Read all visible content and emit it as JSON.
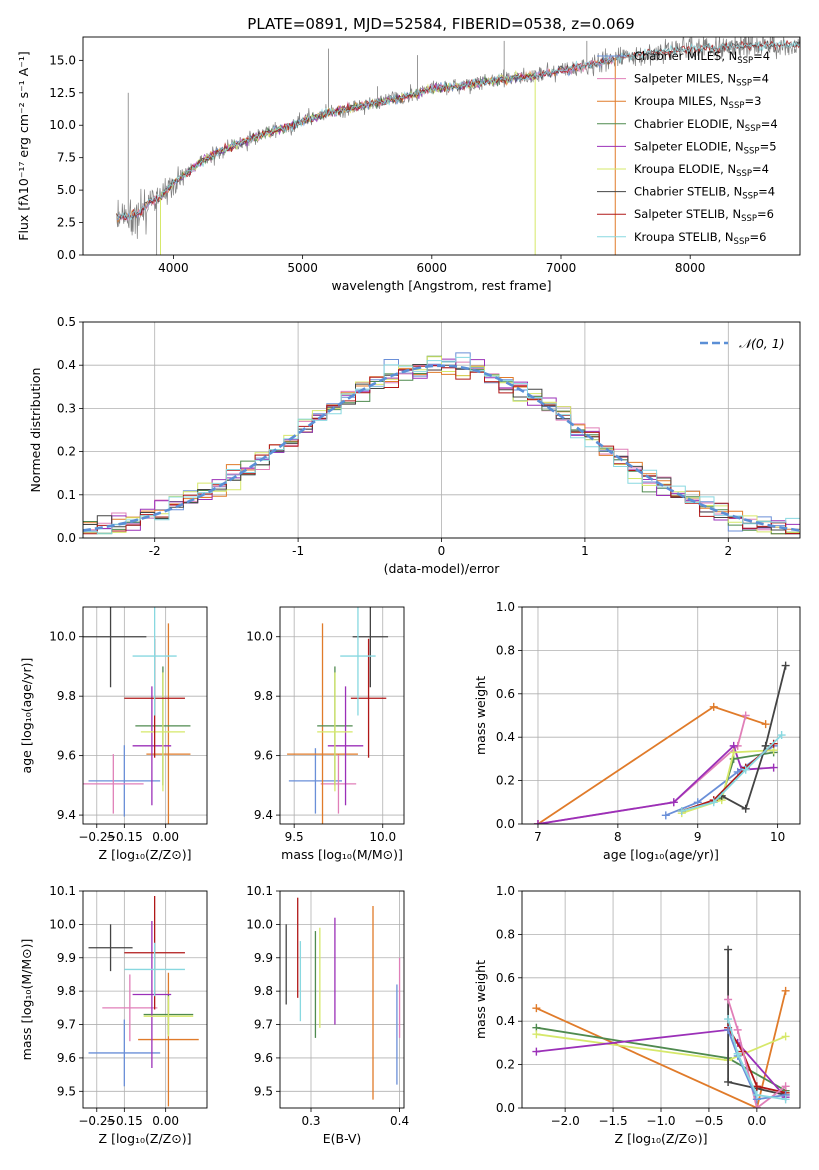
{
  "figure_title": "PLATE=0891, MJD=52584, FIBERID=0538, z=0.069",
  "colors": {
    "Chabrier MILES": "#6a8fd8",
    "Salpeter MILES": "#e07fb8",
    "Kroupa MILES": "#e07b2a",
    "Chabrier ELODIE": "#4f8a4f",
    "Salpeter ELODIE": "#9b30b8",
    "Kroupa ELODIE": "#d6e86a",
    "Chabrier STELIB": "#444444",
    "Salpeter STELIB": "#b01818",
    "Kroupa STELIB": "#88d8e0",
    "data": "#7f7f7f",
    "normal_curve": "#5b8fd6"
  },
  "chart_data": [
    {
      "id": "spectrum",
      "type": "line",
      "xlabel": "wavelength [Angstrom, rest frame]",
      "ylabel": "Flux [fλ10⁻¹⁷ erg cm⁻² s⁻¹ A⁻¹]",
      "xlim": [
        3300,
        8850
      ],
      "ylim": [
        0,
        16.8
      ],
      "xticks": [
        4000,
        5000,
        6000,
        7000,
        8000
      ],
      "yticks": [
        0.0,
        2.5,
        5.0,
        7.5,
        10.0,
        12.5,
        15.0
      ],
      "grid": false,
      "legend_position": "top-right",
      "legend": [
        {
          "model": "Chabrier MILES",
          "label": "Chabrier MILES, N",
          "sub": "SSP",
          "suffix": "=4"
        },
        {
          "model": "Salpeter MILES",
          "label": "Salpeter MILES, N",
          "sub": "SSP",
          "suffix": "=4"
        },
        {
          "model": "Kroupa MILES",
          "label": "Kroupa MILES, N",
          "sub": "SSP",
          "suffix": "=3"
        },
        {
          "model": "Chabrier ELODIE",
          "label": "Chabrier ELODIE, N",
          "sub": "SSP",
          "suffix": "=4"
        },
        {
          "model": "Salpeter ELODIE",
          "label": "Salpeter ELODIE, N",
          "sub": "SSP",
          "suffix": "=5"
        },
        {
          "model": "Kroupa ELODIE",
          "label": "Kroupa ELODIE, N",
          "sub": "SSP",
          "suffix": "=4"
        },
        {
          "model": "Chabrier STELIB",
          "label": "Chabrier STELIB, N",
          "sub": "SSP",
          "suffix": "=4"
        },
        {
          "model": "Salpeter STELIB",
          "label": "Salpeter STELIB, N",
          "sub": "SSP",
          "suffix": "=6"
        },
        {
          "model": "Kroupa STELIB",
          "label": "Kroupa STELIB, N",
          "sub": "SSP",
          "suffix": "=6"
        }
      ],
      "continuum": {
        "x": [
          3550,
          3650,
          3750,
          3800,
          3900,
          4000,
          4100,
          4200,
          4300,
          4500,
          4700,
          4900,
          5000,
          5200,
          5400,
          5600,
          5800,
          6000,
          6200,
          6400,
          6600,
          6800,
          7000,
          7200,
          7400,
          7600,
          7800,
          8000,
          8200,
          8400,
          8800
        ],
        "y": [
          3.0,
          2.9,
          3.3,
          4.0,
          4.5,
          5.5,
          6.3,
          7.1,
          7.7,
          8.6,
          9.3,
          9.9,
          10.3,
          11.0,
          11.4,
          11.8,
          12.2,
          12.8,
          13.0,
          13.3,
          13.6,
          13.8,
          14.2,
          14.6,
          15.1,
          15.5,
          15.7,
          15.9,
          16.0,
          16.1,
          16.2
        ]
      }
    },
    {
      "id": "residuals",
      "type": "histogram",
      "xlabel": "(data-model)/error",
      "ylabel": "Normed distribution",
      "xlim": [
        -2.5,
        2.5
      ],
      "ylim": [
        0,
        0.5
      ],
      "xticks": [
        -2,
        -1,
        0,
        1,
        2
      ],
      "yticks": [
        0.0,
        0.1,
        0.2,
        0.3,
        0.4,
        0.5
      ],
      "grid": true,
      "legend": "𝒩(0, 1)",
      "legend_position": "top-right",
      "bin_width": 0.1
    },
    {
      "id": "age_vs_Z",
      "type": "errorbar",
      "xlabel": "Z [log₁₀(Z/Z⊙)]",
      "ylabel": "age  [log₁₀(age/yr)]",
      "xlim": [
        -0.3,
        0.15
      ],
      "ylim": [
        9.37,
        10.1
      ],
      "xticks": [
        -0.25,
        -0.15,
        0.0
      ],
      "xticklabels": [
        "−0.25",
        "−0.15",
        "0.00"
      ],
      "yticks": [
        9.4,
        9.6,
        9.8,
        10.0
      ],
      "grid": true,
      "points": [
        {
          "model": "Chabrier MILES",
          "x": -0.15,
          "y": 9.515,
          "xerr": 0.13,
          "yerr": 0.12
        },
        {
          "model": "Salpeter MILES",
          "x": -0.19,
          "y": 9.505,
          "xerr": 0.11,
          "yerr": 0.1
        },
        {
          "model": "Kroupa MILES",
          "x": 0.01,
          "y": 9.605,
          "xerr": 0.08,
          "yerr": 0.44
        },
        {
          "model": "Chabrier ELODIE",
          "x": -0.01,
          "y": 9.7,
          "xerr": 0.1,
          "yerr": 0.2
        },
        {
          "model": "Salpeter ELODIE",
          "x": -0.05,
          "y": 9.633,
          "xerr": 0.07,
          "yerr": 0.2
        },
        {
          "model": "Kroupa ELODIE",
          "x": -0.01,
          "y": 9.68,
          "xerr": 0.08,
          "yerr": 0.2
        },
        {
          "model": "Chabrier STELIB",
          "x": -0.2,
          "y": 10.0,
          "xerr": 0.13,
          "yerr": 0.17
        },
        {
          "model": "Salpeter STELIB",
          "x": -0.04,
          "y": 9.793,
          "xerr": 0.11,
          "yerr": 0.2
        },
        {
          "model": "Kroupa STELIB",
          "x": -0.04,
          "y": 9.935,
          "xerr": 0.08,
          "yerr": 0.2
        }
      ]
    },
    {
      "id": "age_vs_mass",
      "type": "errorbar",
      "xlabel": "mass [log₁₀(M/M⊙)]",
      "xlim": [
        9.42,
        10.12
      ],
      "ylim": [
        9.37,
        10.1
      ],
      "xticks": [
        9.5,
        10.0
      ],
      "xticklabels": [
        "9.5",
        "10.0"
      ],
      "yticks": [
        9.4,
        9.6,
        9.8,
        10.0
      ],
      "grid": true,
      "points": [
        {
          "model": "Chabrier MILES",
          "x": 9.62,
          "y": 9.515,
          "xerr": 0.15,
          "yerr": 0.11
        },
        {
          "model": "Salpeter MILES",
          "x": 9.75,
          "y": 9.505,
          "xerr": 0.1,
          "yerr": 0.1
        },
        {
          "model": "Kroupa MILES",
          "x": 9.66,
          "y": 9.605,
          "xerr": 0.2,
          "yerr": 0.44
        },
        {
          "model": "Chabrier ELODIE",
          "x": 9.73,
          "y": 9.7,
          "xerr": 0.1,
          "yerr": 0.2
        },
        {
          "model": "Salpeter ELODIE",
          "x": 9.79,
          "y": 9.633,
          "xerr": 0.1,
          "yerr": 0.2
        },
        {
          "model": "Kroupa ELODIE",
          "x": 9.73,
          "y": 9.68,
          "xerr": 0.1,
          "yerr": 0.2
        },
        {
          "model": "Chabrier STELIB",
          "x": 9.93,
          "y": 10.0,
          "xerr": 0.1,
          "yerr": 0.17
        },
        {
          "model": "Salpeter STELIB",
          "x": 9.92,
          "y": 9.793,
          "xerr": 0.1,
          "yerr": 0.2
        },
        {
          "model": "Kroupa STELIB",
          "x": 9.86,
          "y": 9.935,
          "xerr": 0.1,
          "yerr": 0.2
        }
      ]
    },
    {
      "id": "weight_vs_age",
      "type": "line",
      "xlabel": "age  [log₁₀(age/yr)]",
      "ylabel": "mass weight",
      "xlim": [
        6.8,
        10.28
      ],
      "ylim": [
        0,
        1.0
      ],
      "xticks": [
        7,
        8,
        9,
        10
      ],
      "yticks": [
        0.0,
        0.2,
        0.4,
        0.6,
        0.8,
        1.0
      ],
      "grid": true,
      "series": [
        {
          "model": "Kroupa MILES",
          "x": [
            7.0,
            9.2,
            9.85
          ],
          "y": [
            0.0,
            0.54,
            0.46
          ]
        },
        {
          "model": "Salpeter MILES",
          "x": [
            7.0,
            8.7,
            9.5,
            9.6
          ],
          "y": [
            0.0,
            0.1,
            0.36,
            0.5
          ]
        },
        {
          "model": "Salpeter ELODIE",
          "x": [
            7.0,
            8.7,
            9.45,
            9.55,
            9.95
          ],
          "y": [
            0.0,
            0.1,
            0.36,
            0.25,
            0.26
          ]
        },
        {
          "model": "Chabrier MILES",
          "x": [
            8.6,
            9.0,
            9.5,
            9.95
          ],
          "y": [
            0.04,
            0.1,
            0.24,
            0.36
          ]
        },
        {
          "model": "Chabrier ELODIE",
          "x": [
            8.8,
            9.3,
            9.45,
            9.95
          ],
          "y": [
            0.06,
            0.12,
            0.3,
            0.33
          ]
        },
        {
          "model": "Kroupa ELODIE",
          "x": [
            8.8,
            9.3,
            9.45,
            9.95
          ],
          "y": [
            0.05,
            0.11,
            0.33,
            0.34
          ]
        },
        {
          "model": "Salpeter STELIB",
          "x": [
            8.8,
            9.2,
            9.6,
            9.95
          ],
          "y": [
            0.06,
            0.11,
            0.26,
            0.37
          ]
        },
        {
          "model": "Chabrier STELIB",
          "x": [
            9.3,
            9.6,
            9.85,
            10.1
          ],
          "y": [
            0.13,
            0.07,
            0.36,
            0.73
          ]
        },
        {
          "model": "Kroupa STELIB",
          "x": [
            8.8,
            9.2,
            9.6,
            10.05
          ],
          "y": [
            0.06,
            0.1,
            0.25,
            0.41
          ]
        }
      ]
    },
    {
      "id": "mass_vs_Z",
      "type": "errorbar",
      "xlabel": "Z [log₁₀(Z/Z⊙)]",
      "ylabel": "mass [log₁₀(M/M⊙)]",
      "xlim": [
        -0.3,
        0.15
      ],
      "ylim": [
        9.45,
        10.1
      ],
      "xticks": [
        -0.25,
        -0.15,
        0.0
      ],
      "xticklabels": [
        "−0.25",
        "−0.15",
        "0.00"
      ],
      "yticks": [
        9.5,
        9.6,
        9.7,
        9.8,
        9.9,
        10.0,
        10.1
      ],
      "grid": true,
      "points": [
        {
          "model": "Chabrier MILES",
          "x": -0.15,
          "y": 9.615,
          "xerr": 0.13,
          "yerr": 0.1
        },
        {
          "model": "Salpeter MILES",
          "x": -0.13,
          "y": 9.75,
          "xerr": 0.1,
          "yerr": 0.1
        },
        {
          "model": "Kroupa MILES",
          "x": 0.01,
          "y": 9.655,
          "xerr": 0.11,
          "yerr": 0.2
        },
        {
          "model": "Chabrier ELODIE",
          "x": 0.01,
          "y": 9.73,
          "xerr": 0.09,
          "yerr": 0.06
        },
        {
          "model": "Salpeter ELODIE",
          "x": -0.05,
          "y": 9.79,
          "xerr": 0.07,
          "yerr": 0.22
        },
        {
          "model": "Kroupa ELODIE",
          "x": 0.01,
          "y": 9.725,
          "xerr": 0.09,
          "yerr": 0.06
        },
        {
          "model": "Chabrier STELIB",
          "x": -0.2,
          "y": 9.93,
          "xerr": 0.08,
          "yerr": 0.07
        },
        {
          "model": "Salpeter STELIB",
          "x": -0.04,
          "y": 9.915,
          "xerr": 0.11,
          "yerr": 0.17
        },
        {
          "model": "Kroupa STELIB",
          "x": -0.04,
          "y": 9.865,
          "xerr": 0.11,
          "yerr": 0.08
        }
      ]
    },
    {
      "id": "mass_vs_EBV",
      "type": "errorbar",
      "xlabel": "E(B-V)",
      "xlim": [
        0.265,
        0.405
      ],
      "ylim": [
        9.45,
        10.1
      ],
      "xticks": [
        0.3,
        0.4
      ],
      "xticklabels": [
        "0.3",
        "0.4"
      ],
      "yticks": [
        9.5,
        9.6,
        9.7,
        9.8,
        9.9,
        10.0,
        10.1
      ],
      "grid": true,
      "points": [
        {
          "model": "Chabrier MILES",
          "x": 0.397,
          "y": 9.67,
          "xerr": 0,
          "yerr": 0.15
        },
        {
          "model": "Salpeter MILES",
          "x": 0.4,
          "y": 9.78,
          "xerr": 0,
          "yerr": 0.12
        },
        {
          "model": "Kroupa MILES",
          "x": 0.37,
          "y": 9.765,
          "xerr": 0,
          "yerr": 0.29
        },
        {
          "model": "Chabrier ELODIE",
          "x": 0.305,
          "y": 9.82,
          "xerr": 0,
          "yerr": 0.16
        },
        {
          "model": "Salpeter ELODIE",
          "x": 0.327,
          "y": 9.86,
          "xerr": 0,
          "yerr": 0.16
        },
        {
          "model": "Kroupa ELODIE",
          "x": 0.31,
          "y": 9.84,
          "xerr": 0,
          "yerr": 0.15
        },
        {
          "model": "Chabrier STELIB",
          "x": 0.272,
          "y": 9.88,
          "xerr": 0,
          "yerr": 0.12
        },
        {
          "model": "Salpeter STELIB",
          "x": 0.285,
          "y": 9.93,
          "xerr": 0,
          "yerr": 0.15
        },
        {
          "model": "Kroupa STELIB",
          "x": 0.288,
          "y": 9.83,
          "xerr": 0,
          "yerr": 0.12
        }
      ]
    },
    {
      "id": "weight_vs_Z",
      "type": "line",
      "xlabel": "Z [log₁₀(Z/Z⊙)]",
      "ylabel": "mass weight",
      "xlim": [
        -2.45,
        0.45
      ],
      "ylim": [
        0,
        1.0
      ],
      "xticks": [
        -2.0,
        -1.5,
        -1.0,
        -0.5,
        0.0
      ],
      "xticklabels": [
        "−2.0",
        "−1.5",
        "−1.0",
        "−0.5",
        "0.0"
      ],
      "yticks": [
        0.0,
        0.2,
        0.4,
        0.6,
        0.8,
        1.0
      ],
      "grid": true,
      "series": [
        {
          "model": "Kroupa MILES",
          "x": [
            -2.3,
            0.0,
            0.3
          ],
          "y": [
            0.46,
            0.0,
            0.54
          ]
        },
        {
          "model": "Chabrier ELODIE",
          "x": [
            -2.3,
            -0.3,
            0.3
          ],
          "y": [
            0.37,
            0.23,
            0.08
          ]
        },
        {
          "model": "Kroupa ELODIE",
          "x": [
            -2.3,
            -0.3,
            0.3
          ],
          "y": [
            0.34,
            0.22,
            0.33
          ]
        },
        {
          "model": "Salpeter ELODIE",
          "x": [
            -2.3,
            -0.3,
            -0.2,
            0.3
          ],
          "y": [
            0.26,
            0.36,
            0.3,
            0.05
          ]
        },
        {
          "model": "Chabrier STELIB",
          "x": [
            -0.3,
            -0.3,
            0.0,
            0.3
          ],
          "y": [
            0.73,
            0.12,
            0.09,
            0.06
          ]
        },
        {
          "model": "Salpeter STELIB",
          "x": [
            -0.3,
            -0.15,
            0.0,
            0.3
          ],
          "y": [
            0.37,
            0.26,
            0.1,
            0.07
          ]
        },
        {
          "model": "Salpeter MILES",
          "x": [
            -0.3,
            -0.2,
            0.0,
            0.3
          ],
          "y": [
            0.5,
            0.36,
            0.0,
            0.1
          ]
        },
        {
          "model": "Chabrier MILES",
          "x": [
            -0.3,
            -0.2,
            0.0,
            0.3
          ],
          "y": [
            0.36,
            0.24,
            0.04,
            0.06
          ]
        },
        {
          "model": "Kroupa STELIB",
          "x": [
            -0.3,
            -0.2,
            0.0,
            0.3
          ],
          "y": [
            0.41,
            0.25,
            0.06,
            0.04
          ]
        }
      ]
    }
  ]
}
